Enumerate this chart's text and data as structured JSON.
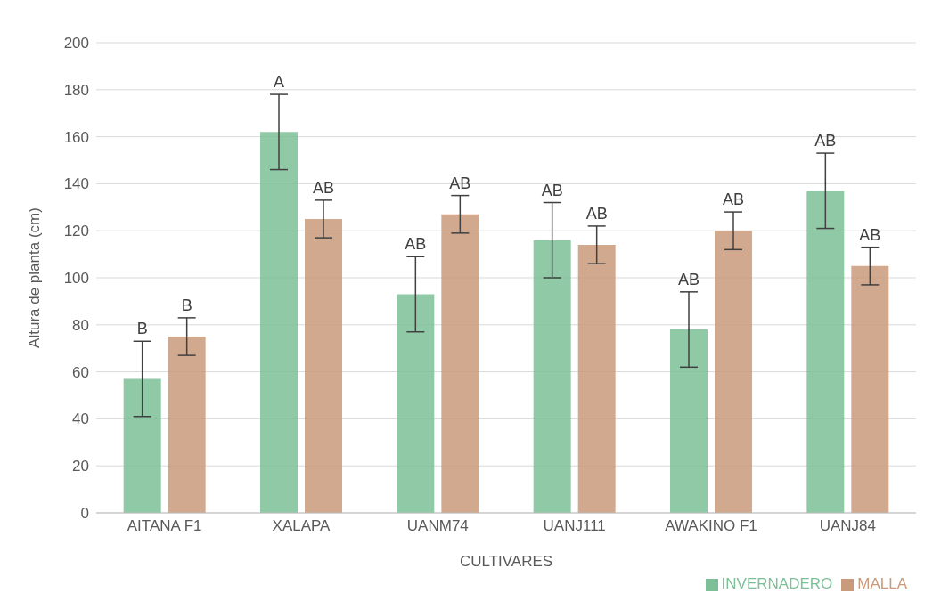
{
  "chart_data": {
    "type": "bar",
    "xlabel": "CULTIVARES",
    "ylabel": "Altura de planta (cm)",
    "categories": [
      "AITANA F1",
      "XALAPA",
      "UANM74",
      "UANJ111",
      "AWAKINO F1",
      "UANJ84"
    ],
    "series": [
      {
        "name": "INVERNADERO",
        "color": "#7dbf96",
        "values": [
          57,
          162,
          93,
          116,
          78,
          137
        ],
        "errors": [
          16,
          16,
          16,
          16,
          16,
          16
        ],
        "value_labels": [
          "B",
          "A",
          "AB",
          "AB",
          "AB",
          "AB"
        ]
      },
      {
        "name": "MALLA",
        "color": "#c99a7b",
        "values": [
          75,
          125,
          127,
          114,
          120,
          105
        ],
        "errors": [
          8,
          8,
          8,
          8,
          8,
          8
        ],
        "value_labels": [
          "B",
          "AB",
          "AB",
          "AB",
          "AB",
          "AB"
        ]
      }
    ],
    "ylim": [
      0,
      200
    ],
    "yticks": [
      0,
      20,
      40,
      60,
      80,
      100,
      120,
      140,
      160,
      180,
      200
    ],
    "grid": "y",
    "legend": "bottom right"
  }
}
